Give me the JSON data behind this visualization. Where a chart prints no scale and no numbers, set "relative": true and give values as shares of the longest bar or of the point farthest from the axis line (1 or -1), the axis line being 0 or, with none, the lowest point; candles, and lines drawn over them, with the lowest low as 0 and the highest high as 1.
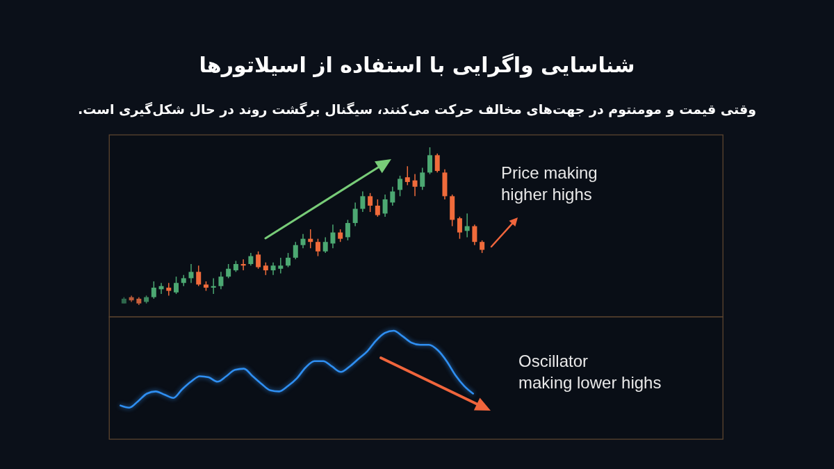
{
  "chart_data": [
    {
      "type": "candlestick",
      "title": "شناسایی واگرایی با استفاده از اسیلاتورها",
      "subtitle": "وقتی قیمت و مومنتوم در جهت‌های مخالف حرکت می‌کنند، سیگنال برگشت روند در حال شکل‌گیری است.",
      "relative": true,
      "categories": [
        null,
        null,
        null,
        null,
        null,
        null,
        null,
        null,
        null,
        null,
        null,
        null,
        null,
        null,
        null,
        null,
        null,
        null,
        null,
        null,
        null,
        null,
        null,
        null,
        null,
        null,
        null,
        null,
        null,
        null,
        null,
        null,
        null,
        null,
        null,
        null,
        null,
        null,
        null,
        null,
        null,
        null,
        null,
        null,
        null,
        null,
        null,
        null,
        null
      ],
      "ohlc": [
        [
          0.01,
          0.05,
          0.01,
          0.04
        ],
        [
          0.05,
          0.06,
          0.02,
          0.03
        ],
        [
          0.04,
          0.05,
          0,
          0.01
        ],
        [
          0.02,
          0.06,
          0.01,
          0.05
        ],
        [
          0.05,
          0.15,
          0.04,
          0.11
        ],
        [
          0.1,
          0.14,
          0.07,
          0.12
        ],
        [
          0.11,
          0.14,
          0.06,
          0.09
        ],
        [
          0.08,
          0.18,
          0.07,
          0.14
        ],
        [
          0.14,
          0.19,
          0.12,
          0.17
        ],
        [
          0.17,
          0.26,
          0.14,
          0.21
        ],
        [
          0.21,
          0.25,
          0.12,
          0.13
        ],
        [
          0.13,
          0.15,
          0.09,
          0.11
        ],
        [
          0.11,
          0.17,
          0.07,
          0.12
        ],
        [
          0.12,
          0.21,
          0.1,
          0.18
        ],
        [
          0.18,
          0.26,
          0.17,
          0.23
        ],
        [
          0.22,
          0.28,
          0.21,
          0.26
        ],
        [
          0.26,
          0.29,
          0.22,
          0.25
        ],
        [
          0.26,
          0.33,
          0.25,
          0.31
        ],
        [
          0.32,
          0.34,
          0.23,
          0.24
        ],
        [
          0.25,
          0.27,
          0.19,
          0.22
        ],
        [
          0.22,
          0.27,
          0.19,
          0.25
        ],
        [
          0.23,
          0.3,
          0.2,
          0.25
        ],
        [
          0.25,
          0.33,
          0.24,
          0.3
        ],
        [
          0.3,
          0.4,
          0.29,
          0.38
        ],
        [
          0.38,
          0.45,
          0.36,
          0.42
        ],
        [
          0.42,
          0.48,
          0.36,
          0.4
        ],
        [
          0.4,
          0.42,
          0.31,
          0.34
        ],
        [
          0.34,
          0.43,
          0.33,
          0.4
        ],
        [
          0.39,
          0.51,
          0.36,
          0.46
        ],
        [
          0.46,
          0.48,
          0.4,
          0.42
        ],
        [
          0.43,
          0.54,
          0.41,
          0.52
        ],
        [
          0.52,
          0.65,
          0.5,
          0.61
        ],
        [
          0.61,
          0.72,
          0.59,
          0.69
        ],
        [
          0.69,
          0.71,
          0.59,
          0.63
        ],
        [
          0.63,
          0.67,
          0.56,
          0.57
        ],
        [
          0.58,
          0.7,
          0.56,
          0.67
        ],
        [
          0.65,
          0.75,
          0.63,
          0.72
        ],
        [
          0.73,
          0.82,
          0.69,
          0.8
        ],
        [
          0.81,
          0.88,
          0.76,
          0.78
        ],
        [
          0.79,
          0.83,
          0.69,
          0.75
        ],
        [
          0.75,
          0.87,
          0.73,
          0.84
        ],
        [
          0.84,
          1,
          0.83,
          0.95
        ],
        [
          0.95,
          0.96,
          0.84,
          0.85
        ],
        [
          0.84,
          0.86,
          0.67,
          0.69
        ],
        [
          0.69,
          0.7,
          0.5,
          0.54
        ],
        [
          0.55,
          0.56,
          0.42,
          0.46
        ],
        [
          0.47,
          0.58,
          0.43,
          0.5
        ],
        [
          0.5,
          0.51,
          0.38,
          0.4
        ],
        [
          0.4,
          0.41,
          0.33,
          0.35
        ]
      ],
      "colors": [
        "#2e684c",
        "#b85a3a",
        "#c85f3b",
        "#3e8a60",
        "#4ca872",
        "#4ca872",
        "#f06b3b",
        "#4ca872",
        "#4ca872",
        "#4ca872",
        "#f06b3b",
        "#f06b3b",
        "#4ca872",
        "#4ca872",
        "#4ca872",
        "#4ca872",
        "#f06b3b",
        "#4ca872",
        "#f06b3b",
        "#f06b3b",
        "#4ca872",
        "#4ca872",
        "#4ca872",
        "#4ca872",
        "#4ca872",
        "#f06b3b",
        "#f06b3b",
        "#4ca872",
        "#4ca872",
        "#f06b3b",
        "#4ca872",
        "#4ca872",
        "#4ca872",
        "#f06b3b",
        "#f06b3b",
        "#4ca872",
        "#4ca872",
        "#4ca872",
        "#f06b3b",
        "#f06b3b",
        "#4ca872",
        "#4ca872",
        "#f06b3b",
        "#f06b3b",
        "#f06b3b",
        "#f06b3b",
        "#4ca872",
        "#f06b3b",
        "#f06b3b"
      ],
      "annotations": [
        "Price making\nhigher highs"
      ]
    },
    {
      "type": "line",
      "relative": true,
      "categories": [
        null,
        null,
        null,
        null,
        null,
        null,
        null,
        null,
        null,
        null,
        null,
        null,
        null,
        null,
        null,
        null,
        null,
        null,
        null,
        null,
        null,
        null,
        null,
        null,
        null,
        null,
        null,
        null,
        null,
        null,
        null,
        null,
        null,
        null,
        null,
        null,
        null,
        null,
        null,
        null,
        null
      ],
      "series": [
        {
          "color": "#2f8ff2",
          "values": [
            0.31,
            0.29,
            0.35,
            0.42,
            0.44,
            0.41,
            0.38,
            0.46,
            0.53,
            0.58,
            0.57,
            0.53,
            0.58,
            0.64,
            0.65,
            0.58,
            0.51,
            0.45,
            0.44,
            0.49,
            0.56,
            0.66,
            0.72,
            0.72,
            0.67,
            0.62,
            0.67,
            0.74,
            0.81,
            0.91,
            0.98,
            1,
            0.95,
            0.89,
            0.87,
            0.87,
            0.82,
            0.72,
            0.59,
            0.49,
            0.42
          ]
        }
      ],
      "annotations": [
        "Oscillator\nmaking lower highs"
      ]
    }
  ]
}
